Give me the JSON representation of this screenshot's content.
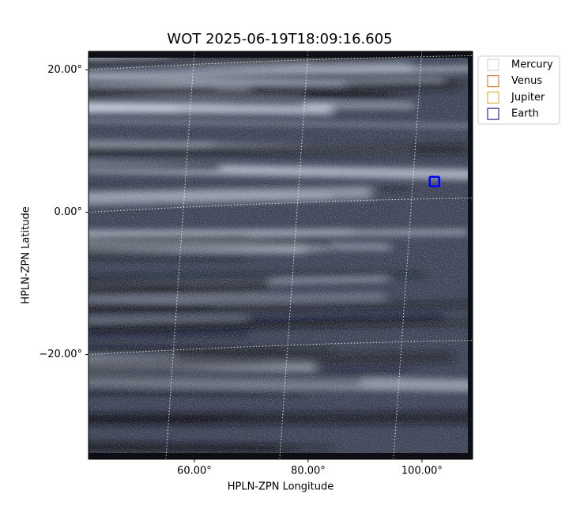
{
  "chart_data": {
    "type": "scatter",
    "title": "WOT 2025-06-19T18:09:16.605",
    "x_label": "HPLN-ZPN Longitude",
    "y_label": "HPLN-ZPN Latitude",
    "xlim": [
      41.4,
      108.9
    ],
    "ylim": [
      -34.7,
      22.6
    ],
    "xticks": [
      {
        "value": 60,
        "label": "60.00°"
      },
      {
        "value": 80,
        "label": "80.00°"
      },
      {
        "value": 100,
        "label": "100.00°"
      }
    ],
    "yticks": [
      {
        "value": -20,
        "label": "−20.00°"
      },
      {
        "value": 0,
        "label": "0.00°"
      },
      {
        "value": 20,
        "label": "20.00°"
      }
    ],
    "grid": true,
    "legend": "upper right outside",
    "series": [
      {
        "name": "Mercury",
        "color": "#cccccc"
      },
      {
        "name": "Venus",
        "color": "#d2691e"
      },
      {
        "name": "Jupiter",
        "color": "#daa520"
      },
      {
        "name": "Earth",
        "color": "#000080",
        "x": [
          102.2
        ],
        "values": [
          4.3
        ]
      }
    ]
  }
}
